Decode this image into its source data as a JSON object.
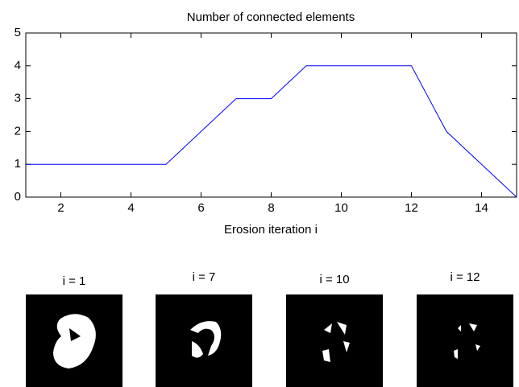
{
  "chart_data": {
    "type": "line",
    "title": "Number of connected elements",
    "x_label": "Erosion iteration i",
    "x": [
      1,
      2,
      3,
      4,
      5,
      6,
      7,
      8,
      9,
      10,
      11,
      12,
      13,
      14,
      15
    ],
    "series": [
      {
        "color": "#0000ff",
        "values": [
          1,
          1,
          1,
          1,
          1,
          2,
          3,
          3,
          4,
          4,
          4,
          4,
          2,
          1,
          0
        ]
      }
    ],
    "xlim": [
      1,
      15
    ],
    "xticks": [
      2,
      4,
      6,
      8,
      10,
      12,
      14
    ],
    "ylim": [
      0,
      5
    ],
    "yticks": [
      0,
      1,
      2,
      3,
      4,
      5
    ],
    "grid": false
  },
  "images": [
    {
      "title": "i = 1"
    },
    {
      "title": "i = 7"
    },
    {
      "title": "i = 10"
    },
    {
      "title": "i = 12"
    }
  ]
}
